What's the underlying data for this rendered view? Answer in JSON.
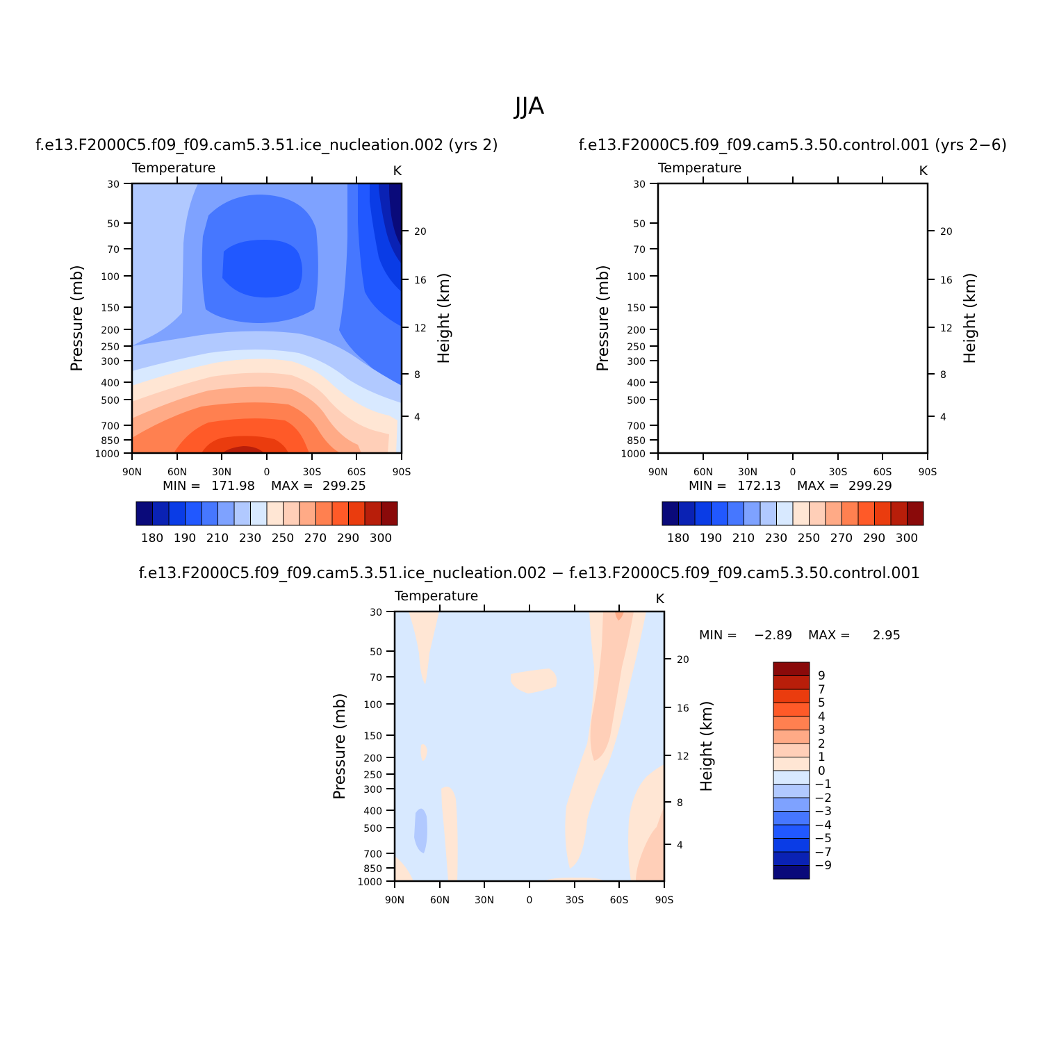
{
  "figure": {
    "title": "JJA"
  },
  "palette": {
    "temperature_colors": [
      "#0a0a7a",
      "#0a22b4",
      "#0a3ce6",
      "#2158ff",
      "#4677ff",
      "#7ea2ff",
      "#b1c9ff",
      "#d8e9ff",
      "#ffe6d4",
      "#ffcfb8",
      "#ffaa86",
      "#ff8050",
      "#ff5a28",
      "#ea3c0e",
      "#b81e0a",
      "#8a0a0a"
    ],
    "diff_colors": [
      "#0a0a7a",
      "#0a22b4",
      "#0a3ce6",
      "#2158ff",
      "#4677ff",
      "#7ea2ff",
      "#b1c9ff",
      "#d8e9ff",
      "#ffe6d4",
      "#ffcfb8",
      "#ffaa86",
      "#ff8050",
      "#ff5a28",
      "#ea3c0e",
      "#b81e0a",
      "#8a0a0a"
    ]
  },
  "chart_data": [
    {
      "type": "heatmap",
      "title": "f.e13.F2000C5.f09_f09.cam5.3.51.ice_nucleation.002 (yrs 2)",
      "subtitle_left": "Temperature",
      "subtitle_right": "K",
      "xlabel": "",
      "ylabel": "Pressure (mb)",
      "ylabel_right": "Height (km)",
      "x_ticks": [
        "90N",
        "60N",
        "30N",
        "0",
        "30S",
        "60S",
        "90S"
      ],
      "y_ticks": [
        "30",
        "50",
        "70",
        "100",
        "150",
        "200",
        "250",
        "300",
        "400",
        "500",
        "700",
        "850",
        "1000"
      ],
      "y_ticks_right": [
        "20",
        "16",
        "12",
        "8",
        "4"
      ],
      "stats": {
        "min_label": "MIN =",
        "min": "171.98",
        "max_label": "MAX =",
        "max": "299.25"
      },
      "colorbar_labels": [
        "180",
        "190",
        "210",
        "230",
        "250",
        "270",
        "290",
        "300"
      ]
    },
    {
      "type": "heatmap",
      "title": "f.e13.F2000C5.f09_f09.cam5.3.50.control.001 (yrs 2−6)",
      "subtitle_left": "Temperature",
      "subtitle_right": "K",
      "xlabel": "",
      "ylabel": "Pressure (mb)",
      "ylabel_right": "Height (km)",
      "x_ticks": [
        "90N",
        "60N",
        "30N",
        "0",
        "30S",
        "60S",
        "90S"
      ],
      "y_ticks": [
        "30",
        "50",
        "70",
        "100",
        "150",
        "200",
        "250",
        "300",
        "400",
        "500",
        "700",
        "850",
        "1000"
      ],
      "y_ticks_right": [
        "20",
        "16",
        "12",
        "8",
        "4"
      ],
      "stats": {
        "min_label": "MIN =",
        "min": "172.13",
        "max_label": "MAX =",
        "max": "299.29"
      },
      "colorbar_labels": [
        "180",
        "190",
        "210",
        "230",
        "250",
        "270",
        "290",
        "300"
      ]
    },
    {
      "type": "heatmap",
      "title": "f.e13.F2000C5.f09_f09.cam5.3.51.ice_nucleation.002 − f.e13.F2000C5.f09_f09.cam5.3.50.control.001",
      "subtitle_left": "Temperature",
      "subtitle_right": "K",
      "xlabel": "",
      "ylabel": "Pressure (mb)",
      "ylabel_right": "Height (km)",
      "x_ticks": [
        "90N",
        "60N",
        "30N",
        "0",
        "30S",
        "60S",
        "90S"
      ],
      "y_ticks": [
        "30",
        "50",
        "70",
        "100",
        "150",
        "200",
        "250",
        "300",
        "400",
        "500",
        "700",
        "850",
        "1000"
      ],
      "y_ticks_right": [
        "20",
        "16",
        "12",
        "8",
        "4"
      ],
      "stats": {
        "min_label": "MIN =",
        "min": "−2.89",
        "max_label": "MAX =",
        "max": "2.95"
      },
      "colorbar_labels": [
        "9",
        "7",
        "5",
        "4",
        "3",
        "2",
        "1",
        "0",
        "−1",
        "−2",
        "−3",
        "−4",
        "−5",
        "−7",
        "−9"
      ]
    }
  ]
}
